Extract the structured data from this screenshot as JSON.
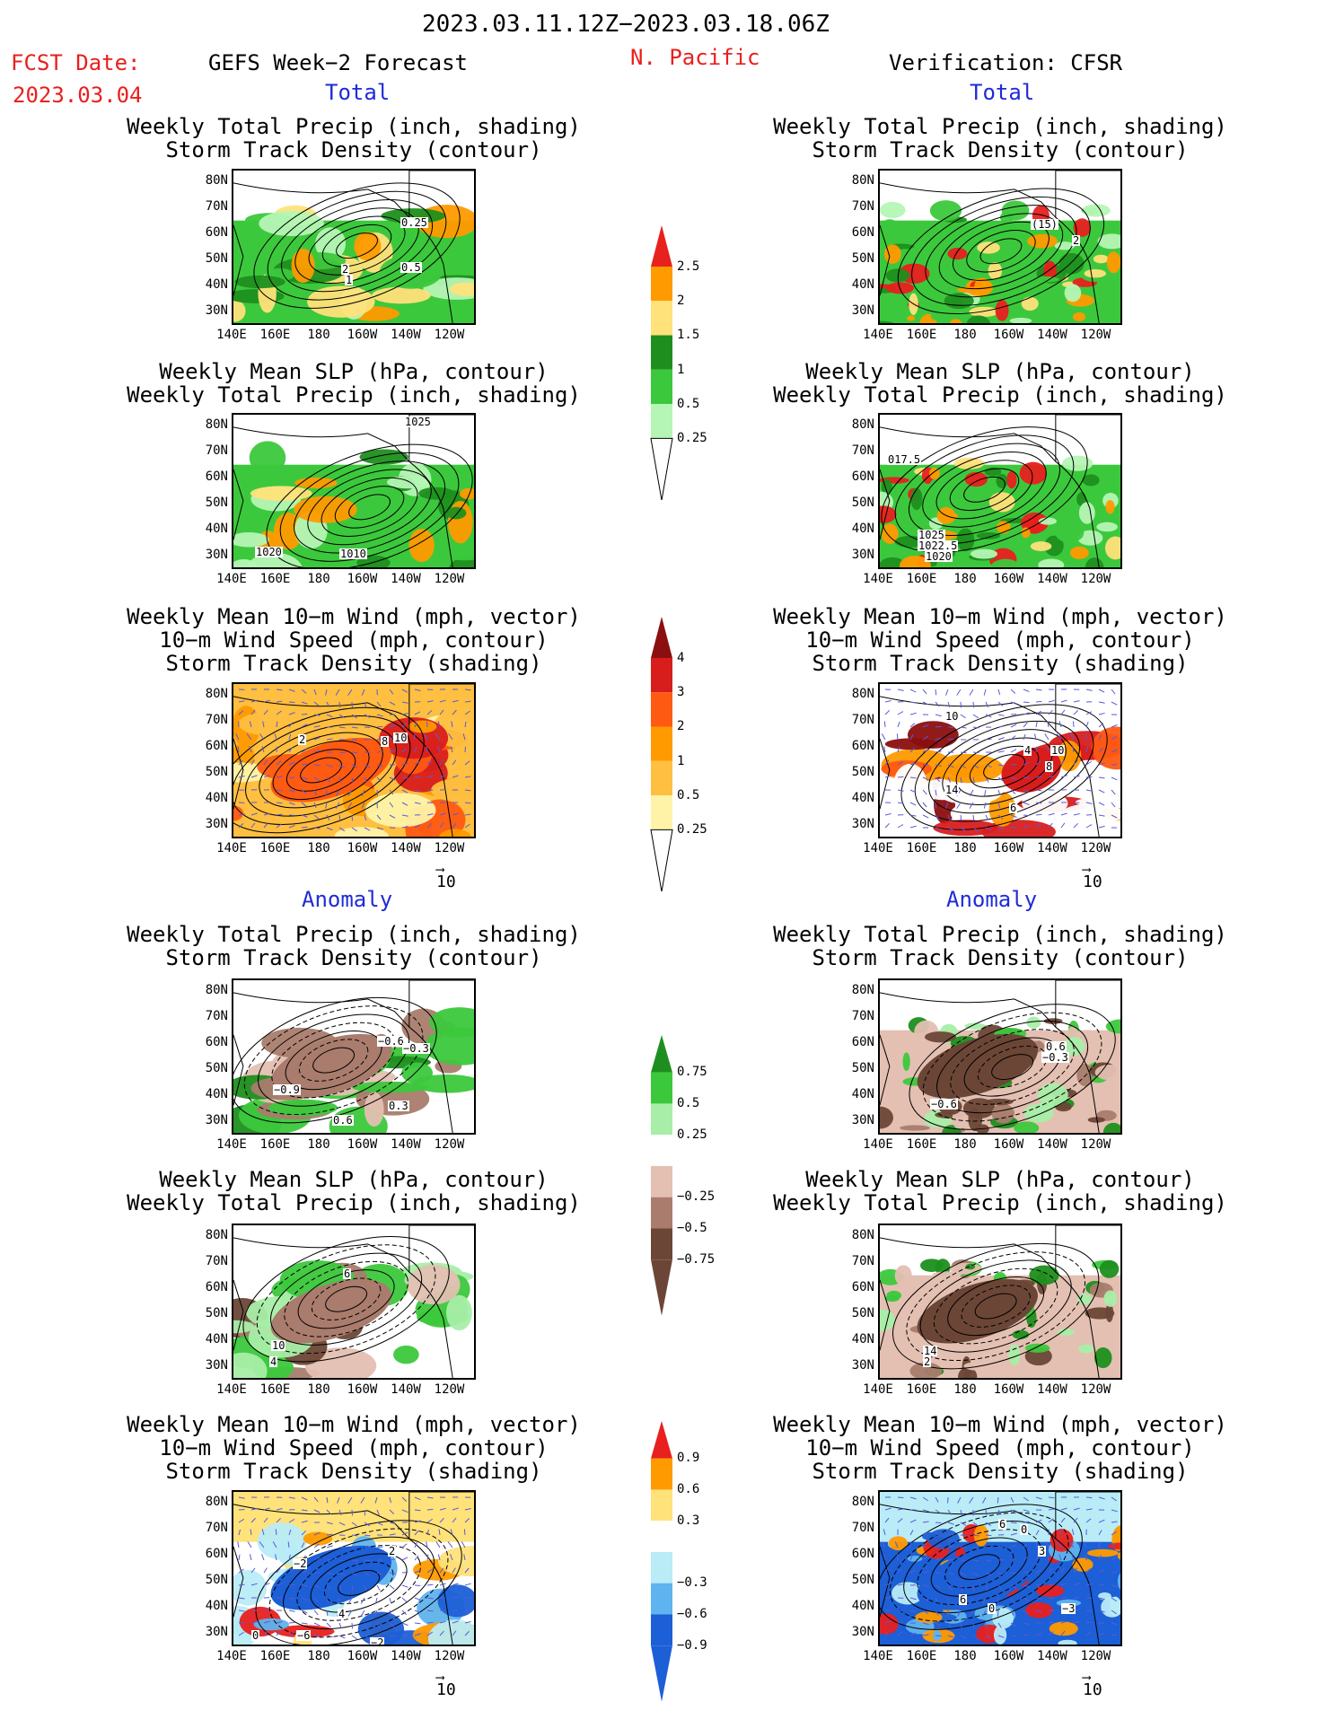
{
  "header": {
    "date_range": "2023.03.11.12Z−2023.03.18.06Z",
    "fcst_label": "FCST Date:",
    "fcst_date": "2023.03.04",
    "left_title": "GEFS Week−2 Forecast",
    "center_title": "N. Pacific",
    "right_title": "Verification: CFSR",
    "total_label": "Total",
    "anomaly_label": "Anomaly"
  },
  "axes": {
    "lat_ticks": [
      "80N",
      "70N",
      "60N",
      "50N",
      "40N",
      "30N"
    ],
    "lon_ticks": [
      "140E",
      "160E",
      "180",
      "160W",
      "140W",
      "120W"
    ]
  },
  "panels": {
    "precip_storm": {
      "line1": "Weekly Total Precip (inch, shading)",
      "line2": "Storm Track Density (contour)"
    },
    "slp_precip": {
      "line1": "Weekly Mean SLP (hPa, contour)",
      "line2": "Weekly Total Precip (inch, shading)"
    },
    "wind": {
      "line1": "Weekly Mean 10−m Wind (mph, vector)",
      "line2": "10−m Wind Speed (mph, contour)",
      "line3": "Storm Track Density (shading)"
    }
  },
  "map_labels": {
    "p1": [
      "0.25",
      "2",
      "1",
      "0.5"
    ],
    "p2": [
      "(15)",
      "2"
    ],
    "p3": [
      "1025",
      "1020",
      "1010"
    ],
    "p4": [
      "017.5",
      "1025",
      "1022.5",
      "1020"
    ],
    "p5": [
      "2",
      "8",
      "10"
    ],
    "p6": [
      "10",
      "4",
      "10",
      "8",
      "14",
      "6"
    ],
    "p7": [
      "−0.6",
      "−0.3",
      "−0.9",
      "0.3",
      "0.6"
    ],
    "p8": [
      "0.6",
      "−0.3",
      "−0.6"
    ],
    "p9": [
      "6",
      "10",
      "4"
    ],
    "p10": [
      "14",
      "2"
    ],
    "p11": [
      "2",
      "−2",
      "4",
      "0",
      "−6",
      "−2"
    ],
    "p12": [
      "6",
      "0",
      "3",
      "6",
      "0",
      "−3"
    ]
  },
  "vector_ref": "10",
  "colorbars": {
    "precip_total": {
      "labels": [
        "2.5",
        "2",
        "1.5",
        "1",
        "0.5",
        "0.25"
      ],
      "colors": [
        "#e8201e",
        "#ff9a00",
        "#ffe27a",
        "#1e8f1e",
        "#3cc83c",
        "#b5f5b5"
      ]
    },
    "storm_total": {
      "labels": [
        "4",
        "3",
        "2",
        "1",
        "0.5",
        "0.25"
      ],
      "colors": [
        "#8b0f0f",
        "#d81d1d",
        "#ff5a12",
        "#ff9a00",
        "#ffbf40",
        "#fff3a8"
      ]
    },
    "precip_anom": {
      "labels": [
        "0.75",
        "0.5",
        "0.25",
        "−0.25",
        "−0.5",
        "−0.75"
      ],
      "colors": [
        "#1e8f1e",
        "#3cc83c",
        "#a8eea8",
        "#ffffff",
        "#e3c0b2",
        "#a97c6d",
        "#6b4636"
      ]
    },
    "storm_anom": {
      "labels": [
        "0.9",
        "0.6",
        "0.3",
        "−0.3",
        "−0.6",
        "−0.9"
      ],
      "colors": [
        "#e8201e",
        "#ff9a00",
        "#ffe27a",
        "#ffffff",
        "#b9ecf7",
        "#5fb3ee",
        "#1c5fd6"
      ]
    }
  }
}
